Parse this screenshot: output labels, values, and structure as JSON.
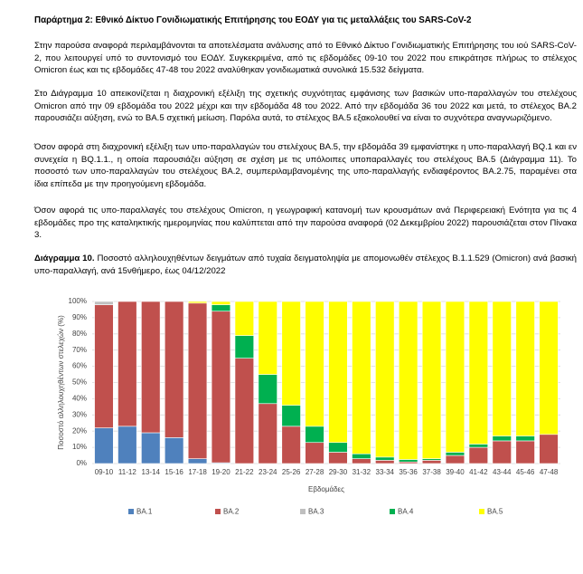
{
  "document": {
    "title": "Παράρτημα 2: Εθνικό Δίκτυο Γονιδιωματικής Επιτήρησης του ΕΟΔΥ για τις μεταλλάξεις του SARS-CoV-2",
    "paragraphs": [
      "Στην παρούσα αναφορά περιλαμβάνονται τα αποτελέσματα ανάλυσης από το Εθνικό Δίκτυο Γονιδιωματικής Επιτήρησης του ιού SARS-CoV-2, που λειτουργεί υπό το συντονισμό του ΕΟΔΥ. Συγκεκριμένα, από τις εβδομάδες 09-10 του 2022 που επικράτησε πλήρως το στέλεχος Omicron έως και τις εβδομάδες 47-48 του 2022 αναλύθηκαν γονιδιωματικά συνολικά 15.532 δείγματα.",
      "Στο Διάγραμμα 10 απεικονίζεται η διαχρονική εξέλιξη της σχετικής συχνότητας εμφάνισης των βασικών υπο-παραλλαγών του στελέχους Omicron από την 09 εβδομάδα του 2022 μέχρι και την εβδομάδα 48 του 2022. Από την εβδομάδα 36 του 2022 και μετά, το στέλεχος BA.2 παρουσιάζει αύξηση, ενώ το BA.5 σχετική μείωση. Παρόλα αυτά, το στέλεχος BA.5 εξακολουθεί να είναι το συχνότερα αναγνωριζόμενο.",
      "Όσον αφορά στη διαχρονική εξέλιξη των υπο-παραλλαγών του στελέχους BA.5, την εβδομάδα 39 εμφανίστηκε η υπο-παραλλαγή BQ.1 και εν συνεχεία η BQ.1.1., η οποία παρουσιάζει αύξηση σε σχέση με τις υπόλοιπες υποπαραλλαγές του στελέχους BA.5 (Διάγραμμα 11). Το ποσοστό των υπο-παραλλαγών του στελέχους BA.2, συμπεριλαμβανομένης της υπο-παραλλαγής ενδιαφέροντος BA.2.75, παραμένει στα ίδια επίπεδα με την προηγούμενη εβδομάδα.",
      "Όσον αφορά τις υπο-παραλλαγές του στελέχους Omicron, η γεωγραφική κατανομή των κρουσμάτων ανά Περιφερειακή Ενότητα για τις 4 εβδομάδες προ της καταληκτικής ημερομηνίας που καλύπτεται από την παρούσα αναφορά (02 Δεκεμβρίου 2022) παρουσιάζεται στον Πίνακα 3."
    ],
    "figure_caption": {
      "label": "Διάγραμμα 10.",
      "text": "Ποσοστό αλληλουχηθέντων δειγμάτων από τυχαία δειγματοληψία με απομονωθέν στέλεχος B.1.1.529 (Omicron) ανά βασική υπο-παραλλαγή, ανά 15νθήμερο, έως 04/12/2022"
    }
  },
  "chart_data": {
    "type": "stacked_bar",
    "y_label": "Ποσοστό αλληλουχηθέντων στελεχών (%)",
    "x_label": "Εβδομάδες",
    "categories": [
      "09-10",
      "11-12",
      "13-14",
      "15-16",
      "17-18",
      "19-20",
      "21-22",
      "23-24",
      "25-26",
      "27-28",
      "29-30",
      "31-32",
      "33-34",
      "35-36",
      "37-38",
      "39-40",
      "41-42",
      "43-44",
      "45-46",
      "47-48"
    ],
    "series": [
      {
        "name": "BA.1",
        "color": "#4f81bd",
        "values": [
          22,
          23,
          19,
          16,
          3,
          0.5,
          0,
          0,
          0,
          0,
          0,
          0,
          0,
          0,
          0,
          0,
          0,
          0,
          0,
          0
        ]
      },
      {
        "name": "BA.2",
        "color": "#c0504d",
        "values": [
          76,
          77,
          81,
          84,
          96,
          93.5,
          65,
          37,
          23,
          13,
          7,
          3,
          2,
          1,
          2,
          5,
          10,
          14,
          14,
          18
        ]
      },
      {
        "name": "BA.3",
        "color": "#bfbfbf",
        "values": [
          2,
          0,
          0,
          0,
          0,
          0,
          0,
          0,
          0,
          0,
          0,
          0,
          0,
          0,
          0,
          0,
          0,
          0,
          0,
          0
        ]
      },
      {
        "name": "BA.4",
        "color": "#00b050",
        "values": [
          0,
          0,
          0,
          0,
          0,
          4,
          14,
          18,
          13,
          10,
          6,
          3,
          2,
          1.5,
          1,
          2,
          2,
          3,
          3,
          0
        ]
      },
      {
        "name": "BA.5",
        "color": "#ffff00",
        "values": [
          0,
          0,
          0,
          0,
          1,
          2,
          21,
          45,
          64,
          77,
          87,
          94,
          96,
          97.5,
          97,
          93,
          88,
          83,
          83,
          82
        ]
      }
    ],
    "ylim": [
      0,
      100
    ],
    "yticks": [
      {
        "value": 0,
        "label": "0%"
      },
      {
        "value": 10,
        "label": "10%"
      },
      {
        "value": 20,
        "label": "20%"
      },
      {
        "value": 30,
        "label": "30%"
      },
      {
        "value": 40,
        "label": "40%"
      },
      {
        "value": 50,
        "label": "50%"
      },
      {
        "value": 60,
        "label": "60%"
      },
      {
        "value": 70,
        "label": "70%"
      },
      {
        "value": 80,
        "label": "80%"
      },
      {
        "value": 90,
        "label": "90%"
      },
      {
        "value": 100,
        "label": "100%"
      }
    ],
    "grid": true
  }
}
